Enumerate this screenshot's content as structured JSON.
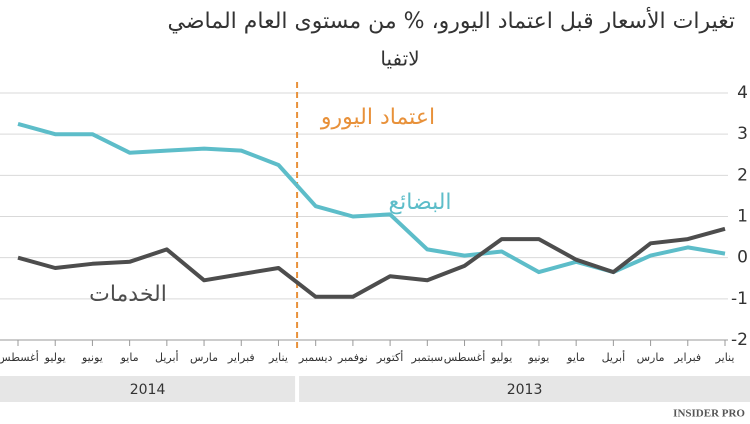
{
  "chart_data": {
    "type": "line",
    "title": "تغيرات الأسعار قبل اعتماد اليورو، % من مستوى العام الماضي",
    "subtitle": "لاتفيا",
    "categories": [
      "يناير",
      "فبراير",
      "مارس",
      "أبريل",
      "مايو",
      "يونيو",
      "يوليو",
      "أغسطس",
      "سبتمبر",
      "أكتوبر",
      "نوفمبر",
      "ديسمبر",
      "يناير",
      "فبراير",
      "مارس",
      "أبريل",
      "مايو",
      "يونيو",
      "يوليو",
      "أغسطس"
    ],
    "year_groups": [
      "2013",
      "2014"
    ],
    "series": [
      {
        "name": "البضائع",
        "color": "#5dbdc9",
        "values": [
          0.1,
          0.25,
          0.05,
          -0.35,
          -0.1,
          -0.35,
          0.15,
          0.05,
          0.2,
          1.05,
          1.0,
          1.25,
          2.25,
          2.6,
          2.65,
          2.6,
          2.55,
          3.0,
          3.0,
          3.25
        ]
      },
      {
        "name": "الخدمات",
        "color": "#4d4d4d",
        "values": [
          0.7,
          0.45,
          0.35,
          -0.35,
          -0.05,
          0.45,
          0.45,
          -0.2,
          -0.55,
          -0.45,
          -0.95,
          -0.95,
          -0.25,
          -0.4,
          -0.55,
          0.2,
          -0.1,
          -0.15,
          -0.25,
          0
        ]
      }
    ],
    "annotation": "اعتماد اليورو",
    "annotation_color": "#e8913a",
    "source": "INSIDER PRO",
    "ylim": [
      -2,
      4
    ],
    "yticks": [
      4,
      3,
      2,
      1,
      0,
      -1,
      -2
    ],
    "grid": true,
    "x_direction": "rtl"
  }
}
